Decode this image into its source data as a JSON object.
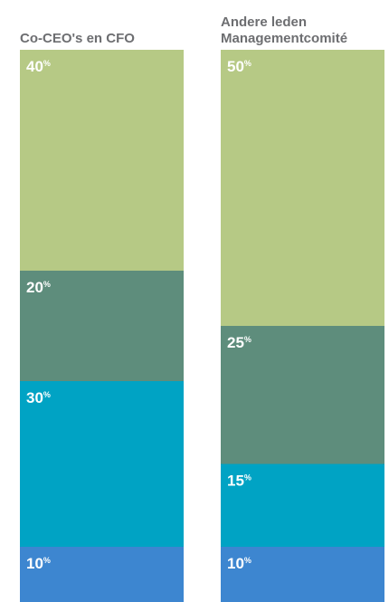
{
  "chart_data": {
    "type": "bar",
    "stacked": true,
    "normalized_percent": true,
    "categories": [
      [
        "Co-CEO's en CFO"
      ],
      [
        "Andere leden",
        "Managementcomité"
      ]
    ],
    "series": [
      {
        "values": [
          10,
          10
        ],
        "color": "#3d86d0"
      },
      {
        "values": [
          30,
          15
        ],
        "color": "#00a3c4"
      },
      {
        "values": [
          20,
          25
        ],
        "color": "#5e8d7c"
      },
      {
        "values": [
          40,
          50
        ],
        "color": "#b6c985"
      }
    ],
    "unit": "%",
    "ylim": [
      0,
      100
    ],
    "legend": "none",
    "grid": false
  }
}
